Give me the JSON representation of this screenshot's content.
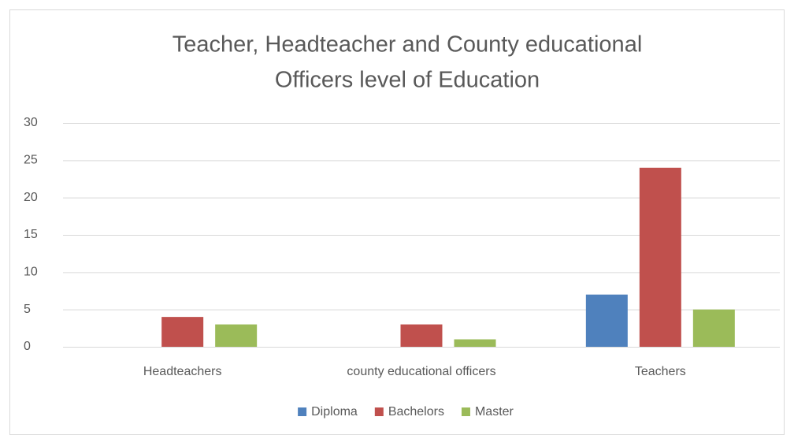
{
  "chart_data": {
    "type": "bar",
    "title": [
      "Teacher, Headteacher and  County educational",
      "Officers  level of  Education"
    ],
    "categories": [
      "Headteachers",
      "county educational officers",
      "Teachers"
    ],
    "series": [
      {
        "name": "Diploma",
        "color": "#4f81bd",
        "values": [
          0,
          0,
          7
        ]
      },
      {
        "name": "Bachelors",
        "color": "#c0504d",
        "values": [
          4,
          3,
          24
        ]
      },
      {
        "name": "Master",
        "color": "#9bbb59",
        "values": [
          3,
          1,
          5
        ]
      }
    ],
    "ylim": [
      0,
      30
    ],
    "yticks": [
      0,
      5,
      10,
      15,
      20,
      25,
      30
    ],
    "grid": true,
    "legend": "bottom"
  }
}
